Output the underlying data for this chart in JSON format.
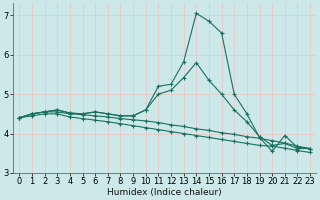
{
  "xlabel": "Humidex (Indice chaleur)",
  "xlim": [
    -0.5,
    23.5
  ],
  "ylim": [
    3.0,
    7.3
  ],
  "yticks": [
    3,
    4,
    5,
    6,
    7
  ],
  "xticks": [
    0,
    1,
    2,
    3,
    4,
    5,
    6,
    7,
    8,
    9,
    10,
    11,
    12,
    13,
    14,
    15,
    16,
    17,
    18,
    19,
    20,
    21,
    22,
    23
  ],
  "background_color": "#cce8e8",
  "grid_color": "#e8c8c8",
  "line_color": "#1a7060",
  "curve_main": [
    4.4,
    4.5,
    4.55,
    4.6,
    4.52,
    4.5,
    4.55,
    4.5,
    4.45,
    4.45,
    4.6,
    5.2,
    5.25,
    5.82,
    7.05,
    6.85,
    6.55,
    5.0,
    4.5,
    3.9,
    3.55,
    3.95,
    3.65,
    3.62
  ],
  "curve_up": [
    4.4,
    4.5,
    4.55,
    4.6,
    4.52,
    4.5,
    4.55,
    4.5,
    4.45,
    4.45,
    4.6,
    5.0,
    5.1,
    5.42,
    5.8,
    5.35,
    5.0,
    4.6,
    4.3,
    3.92,
    3.7,
    3.75,
    3.62,
    3.62
  ],
  "curve_mid": [
    4.4,
    4.5,
    4.55,
    4.55,
    4.5,
    4.48,
    4.45,
    4.42,
    4.38,
    4.35,
    4.32,
    4.28,
    4.22,
    4.18,
    4.12,
    4.08,
    4.02,
    3.98,
    3.92,
    3.88,
    3.82,
    3.76,
    3.68,
    3.62
  ],
  "curve_low": [
    4.4,
    4.45,
    4.5,
    4.5,
    4.42,
    4.38,
    4.34,
    4.3,
    4.25,
    4.2,
    4.15,
    4.1,
    4.05,
    4.0,
    3.95,
    3.9,
    3.85,
    3.8,
    3.75,
    3.7,
    3.68,
    3.63,
    3.57,
    3.52
  ],
  "tick_labelsize": 6,
  "xlabel_fontsize": 6.5
}
